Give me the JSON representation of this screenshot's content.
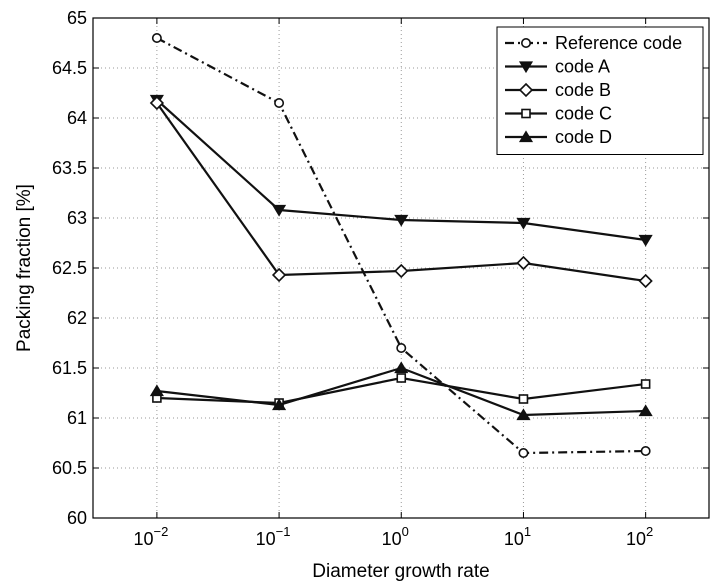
{
  "chart_data": {
    "type": "line",
    "title": "",
    "xlabel": "Diameter growth rate",
    "ylabel": "Packing fraction [%]",
    "x_scale": "log",
    "x": [
      0.01,
      0.1,
      1,
      10,
      100
    ],
    "x_tick_labels": [
      {
        "base": "10",
        "exp": "−2"
      },
      {
        "base": "10",
        "exp": "−1"
      },
      {
        "base": "10",
        "exp": "0"
      },
      {
        "base": "10",
        "exp": "1"
      },
      {
        "base": "10",
        "exp": "2"
      }
    ],
    "xlim": [
      0.003,
      330
    ],
    "ylim": [
      60,
      65
    ],
    "y_ticks": [
      "60",
      "60.5",
      "61",
      "61.5",
      "62",
      "62.5",
      "63",
      "63.5",
      "64",
      "64.5",
      "65"
    ],
    "grid": true,
    "legend_position": "top-right",
    "series": [
      {
        "name": "Reference code",
        "marker": "circle",
        "linestyle": "dashdot",
        "values": [
          64.8,
          64.15,
          61.7,
          60.65,
          60.67
        ]
      },
      {
        "name": "code A",
        "marker": "triangle-down",
        "linestyle": "solid",
        "values": [
          64.18,
          63.08,
          62.98,
          62.95,
          62.78
        ]
      },
      {
        "name": "code B",
        "marker": "diamond",
        "linestyle": "solid",
        "values": [
          64.15,
          62.43,
          62.47,
          62.55,
          62.37
        ]
      },
      {
        "name": "code C",
        "marker": "square",
        "linestyle": "solid",
        "values": [
          61.2,
          61.15,
          61.4,
          61.19,
          61.34
        ]
      },
      {
        "name": "code D",
        "marker": "triangle-up",
        "linestyle": "solid",
        "values": [
          61.27,
          61.13,
          61.5,
          61.03,
          61.07
        ]
      }
    ]
  }
}
